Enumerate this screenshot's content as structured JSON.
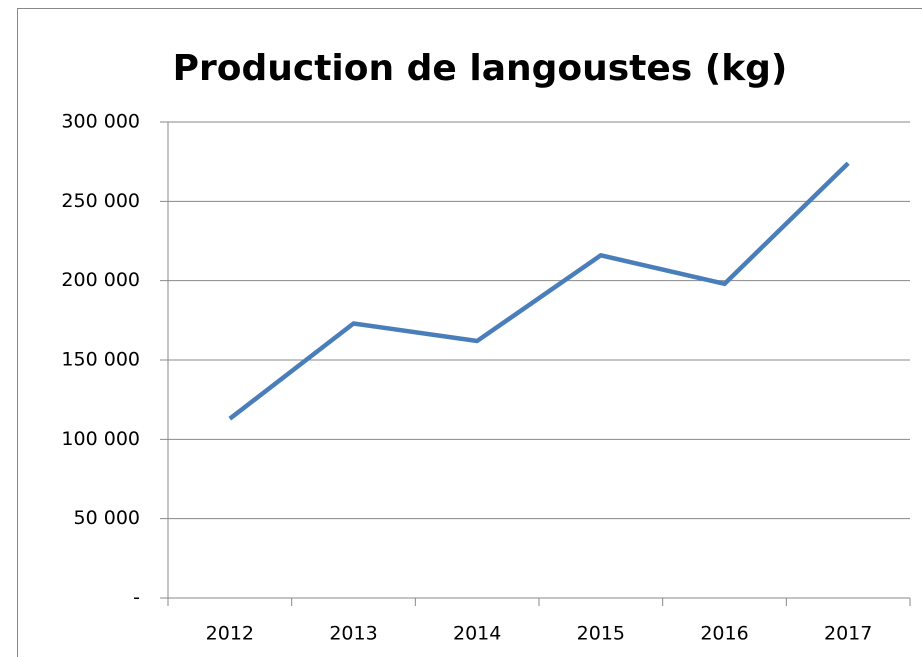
{
  "chart_data": {
    "type": "line",
    "title": "Production de langoustes (kg)",
    "categories": [
      "2012",
      "2013",
      "2014",
      "2015",
      "2016",
      "2017"
    ],
    "series": [
      {
        "name": "Production de langoustes (kg)",
        "color": "#4a7ebb",
        "values": [
          113000,
          173000,
          162000,
          216000,
          198000,
          274000
        ]
      }
    ],
    "ylim": [
      0,
      300000
    ],
    "yticks": [
      {
        "value": 0,
        "label": "-"
      },
      {
        "value": 50000,
        "label": "50 000"
      },
      {
        "value": 100000,
        "label": "100 000"
      },
      {
        "value": 150000,
        "label": "150 000"
      },
      {
        "value": 200000,
        "label": "200 000"
      },
      {
        "value": 250000,
        "label": "250 000"
      },
      {
        "value": 300000,
        "label": "300 000"
      }
    ],
    "grid": true
  }
}
